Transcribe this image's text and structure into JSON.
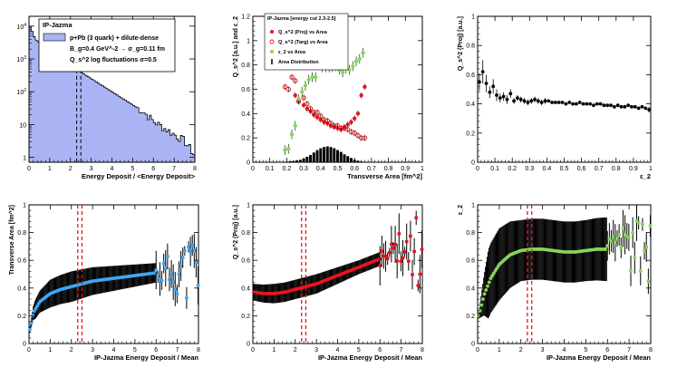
{
  "colors": {
    "fill": "#aab4f5",
    "red": "#e8141e",
    "green": "#88d45a",
    "blue": "#3fa6f2",
    "black": "#000000",
    "dashred": "#e8141e"
  },
  "chart_data": [
    {
      "id": "p1",
      "type": "histogram",
      "title": "IP-Jazma",
      "legend": [
        "p+Pb (3 quark) + dilute-dense",
        "B_g=0.4 GeV^-2 → σ_g=0.11 fm",
        "Q_s^2 log fluctuations σ=0.5"
      ],
      "xlabel": "Energy Deposit / <Energy Deposit>",
      "ylabel": "",
      "xlim": [
        0,
        8
      ],
      "ylim_log10": [
        -0.15,
        4.3
      ],
      "xticks": [
        "0",
        "1",
        "2",
        "3",
        "4",
        "5",
        "6",
        "7",
        "8"
      ],
      "yticks": [
        "1",
        "10",
        "10^2",
        "10^3",
        "10^4"
      ],
      "vlines": [
        2.3,
        2.5
      ],
      "bin_width": 0.1,
      "curve": {
        "x": [
          0.05,
          0.3,
          0.6,
          1.0,
          1.5,
          2.0,
          2.5,
          3.0,
          3.5,
          4.0,
          4.5,
          5.0,
          5.5,
          6.0,
          6.5,
          7.0,
          7.5,
          7.95
        ],
        "log10y": [
          4.0,
          3.6,
          3.45,
          3.25,
          3.0,
          2.8,
          2.6,
          2.4,
          2.2,
          2.0,
          1.8,
          1.6,
          1.4,
          1.1,
          0.9,
          0.7,
          0.5,
          0.1
        ]
      }
    },
    {
      "id": "p2",
      "type": "scatter",
      "legend_title": "IP-Jazma [energy cut 2.3-2.5]",
      "legend": [
        "Q_s^2 (Proj) vs Area",
        "Q_s^2 (Targ) vs Area",
        "ε_2 vs Area",
        "Area Distribution"
      ],
      "xlabel": "Transverse Area [fm^2]",
      "ylabel": "Q_s^2 [a.u.] and ε_2",
      "xlim": [
        0,
        1
      ],
      "ylim": [
        0,
        1.2
      ],
      "xticks": [
        "0",
        "0.1",
        "0.2",
        "0.3",
        "0.4",
        "0.5",
        "0.6",
        "0.7",
        "0.8",
        "0.9",
        "1"
      ],
      "yticks": [
        "0",
        "0.2",
        "0.4",
        "0.6",
        "0.8",
        "1",
        "1.2"
      ],
      "proj": {
        "x": [
          0.25,
          0.27,
          0.3,
          0.32,
          0.34,
          0.36,
          0.38,
          0.4,
          0.42,
          0.44,
          0.46,
          0.48,
          0.5,
          0.52,
          0.54,
          0.56,
          0.58,
          0.6,
          0.62,
          0.64,
          0.66
        ],
        "y": [
          0.55,
          0.51,
          0.47,
          0.44,
          0.42,
          0.39,
          0.37,
          0.35,
          0.33,
          0.32,
          0.3,
          0.29,
          0.28,
          0.27,
          0.29,
          0.31,
          0.33,
          0.36,
          0.4,
          0.55,
          0.62
        ]
      },
      "targ": {
        "x": [
          0.19,
          0.21,
          0.23,
          0.25,
          0.27,
          0.3,
          0.32,
          0.34,
          0.36,
          0.38,
          0.4,
          0.42,
          0.44,
          0.46,
          0.48,
          0.5,
          0.52,
          0.54,
          0.56,
          0.58,
          0.6,
          0.62,
          0.64,
          0.66
        ],
        "y": [
          0.62,
          0.6,
          0.7,
          0.67,
          0.5,
          0.53,
          0.48,
          0.44,
          0.41,
          0.41,
          0.38,
          0.35,
          0.34,
          0.32,
          0.3,
          0.3,
          0.28,
          0.28,
          0.27,
          0.25,
          0.24,
          0.22,
          0.2,
          0.2
        ]
      },
      "eps": {
        "x": [
          0.19,
          0.21,
          0.23,
          0.25,
          0.27,
          0.29,
          0.31,
          0.33,
          0.35,
          0.37,
          0.39,
          0.41,
          0.43,
          0.45,
          0.47,
          0.49,
          0.51,
          0.53,
          0.55,
          0.57,
          0.59,
          0.61,
          0.63,
          0.65
        ],
        "y": [
          0.1,
          0.11,
          0.23,
          0.3,
          0.52,
          0.58,
          0.63,
          0.68,
          0.7,
          0.7,
          0.8,
          0.78,
          0.78,
          0.78,
          0.78,
          0.79,
          0.76,
          0.74,
          0.77,
          0.76,
          0.79,
          0.83,
          0.85,
          0.9
        ]
      },
      "area": {
        "x": [
          0.2,
          0.22,
          0.24,
          0.26,
          0.28,
          0.3,
          0.32,
          0.34,
          0.36,
          0.38,
          0.4,
          0.42,
          0.44,
          0.46,
          0.48,
          0.5,
          0.52,
          0.54,
          0.56,
          0.58,
          0.6,
          0.62,
          0.64,
          0.66
        ],
        "y": [
          0.005,
          0.008,
          0.01,
          0.015,
          0.02,
          0.03,
          0.045,
          0.06,
          0.08,
          0.1,
          0.115,
          0.125,
          0.13,
          0.125,
          0.115,
          0.1,
          0.085,
          0.065,
          0.05,
          0.035,
          0.02,
          0.012,
          0.006,
          0.003
        ]
      }
    },
    {
      "id": "p3",
      "type": "scatter",
      "xlabel": "ε_2",
      "ylabel": "Q_s^2 (Proj) [a.u.]",
      "xlim": [
        0,
        1
      ],
      "ylim": [
        0,
        1
      ],
      "xticks": [
        "0",
        "0.1",
        "0.2",
        "0.3",
        "0.4",
        "0.5",
        "0.6",
        "0.7",
        "0.8",
        "0.9",
        "1"
      ],
      "yticks": [
        "0",
        "0.2",
        "0.4",
        "0.6",
        "0.8",
        "1"
      ],
      "x": [
        0.01,
        0.03,
        0.05,
        0.07,
        0.09,
        0.11,
        0.13,
        0.15,
        0.17,
        0.19,
        0.21,
        0.23,
        0.25,
        0.27,
        0.29,
        0.31,
        0.33,
        0.35,
        0.37,
        0.39,
        0.41,
        0.43,
        0.45,
        0.47,
        0.49,
        0.51,
        0.53,
        0.55,
        0.57,
        0.59,
        0.61,
        0.63,
        0.65,
        0.67,
        0.69,
        0.71,
        0.73,
        0.75,
        0.77,
        0.79,
        0.81,
        0.83,
        0.85,
        0.87,
        0.89,
        0.91,
        0.93,
        0.95,
        0.97,
        0.99
      ],
      "y": [
        0.55,
        0.62,
        0.54,
        0.48,
        0.52,
        0.46,
        0.44,
        0.45,
        0.43,
        0.47,
        0.42,
        0.44,
        0.43,
        0.42,
        0.41,
        0.42,
        0.43,
        0.42,
        0.41,
        0.42,
        0.42,
        0.41,
        0.41,
        0.41,
        0.41,
        0.4,
        0.41,
        0.4,
        0.4,
        0.41,
        0.4,
        0.4,
        0.4,
        0.39,
        0.4,
        0.4,
        0.39,
        0.39,
        0.39,
        0.38,
        0.39,
        0.38,
        0.38,
        0.39,
        0.38,
        0.38,
        0.37,
        0.38,
        0.37,
        0.36
      ],
      "err": [
        0.06,
        0.08,
        0.06,
        0.04,
        0.05,
        0.04,
        0.03,
        0.03,
        0.03,
        0.03,
        0.02,
        0.02,
        0.02,
        0.02,
        0.02,
        0.02,
        0.02,
        0.02,
        0.02,
        0.02,
        0.01,
        0.01,
        0.01,
        0.01,
        0.01,
        0.01,
        0.01,
        0.01,
        0.01,
        0.01,
        0.01,
        0.01,
        0.01,
        0.01,
        0.01,
        0.01,
        0.01,
        0.01,
        0.01,
        0.01,
        0.01,
        0.01,
        0.01,
        0.01,
        0.01,
        0.01,
        0.01,
        0.01,
        0.01,
        0.02
      ]
    },
    {
      "id": "p4",
      "type": "profile",
      "xlabel": "IP-Jazma Energy Deposit / Mean",
      "ylabel": "Transverse Area [fm^2]",
      "xlim": [
        0,
        8
      ],
      "ylim": [
        0,
        1
      ],
      "xticks": [
        "0",
        "1",
        "2",
        "3",
        "4",
        "5",
        "6",
        "7",
        "8"
      ],
      "yticks": [
        "0",
        "0.2",
        "0.4",
        "0.6",
        "0.8",
        "1"
      ],
      "vlines": [
        2.3,
        2.5
      ],
      "curve_x": [
        0.05,
        0.2,
        0.5,
        1.0,
        1.5,
        2.0,
        2.5,
        3.0,
        4.0,
        5.0,
        6.0,
        7.0,
        7.95
      ],
      "curve_y": [
        0.1,
        0.22,
        0.3,
        0.36,
        0.39,
        0.41,
        0.43,
        0.45,
        0.47,
        0.49,
        0.51,
        0.52,
        0.53
      ],
      "spread_x": [
        0.05,
        0.3,
        1.0,
        2.0,
        3.0,
        4.0,
        5.0,
        6.0
      ],
      "spread": [
        0.02,
        0.07,
        0.1,
        0.11,
        0.1,
        0.09,
        0.08,
        0.07
      ],
      "end_x": 6.0
    },
    {
      "id": "p5",
      "type": "profile",
      "xlabel": "IP-Jazma Energy Deposit / Mean",
      "ylabel": "Q_s^2 (Proj) [a.u.]",
      "xlim": [
        0,
        8
      ],
      "ylim": [
        0,
        1
      ],
      "xticks": [
        "0",
        "1",
        "2",
        "3",
        "4",
        "5",
        "6",
        "7",
        "8"
      ],
      "yticks": [
        "0",
        "0.2",
        "0.4",
        "0.6",
        "0.8",
        "1"
      ],
      "vlines": [
        2.3,
        2.5
      ],
      "curve_x": [
        0.05,
        0.5,
        1.0,
        1.5,
        2.0,
        2.5,
        3.0,
        3.5,
        4.0,
        4.5,
        5.0,
        5.5,
        6.0,
        6.5,
        7.0,
        7.5,
        7.95
      ],
      "curve_y": [
        0.37,
        0.36,
        0.36,
        0.37,
        0.39,
        0.41,
        0.43,
        0.46,
        0.49,
        0.52,
        0.55,
        0.58,
        0.61,
        0.63,
        0.65,
        0.67,
        0.68
      ],
      "spread_x": [
        0.05,
        1.0,
        2.0,
        3.0,
        4.0,
        5.0,
        6.0
      ],
      "spread": [
        0.06,
        0.07,
        0.07,
        0.07,
        0.06,
        0.05,
        0.05
      ],
      "end_x": 6.0
    },
    {
      "id": "p6",
      "type": "profile",
      "xlabel": "IP-Jazma Energy Deposit / Mean",
      "ylabel": "ε_2",
      "xlim": [
        0,
        8
      ],
      "ylim": [
        0,
        1
      ],
      "xticks": [
        "0",
        "1",
        "2",
        "3",
        "4",
        "5",
        "6",
        "7",
        "8"
      ],
      "yticks": [
        "0",
        "0.2",
        "0.4",
        "0.6",
        "0.8",
        "1"
      ],
      "vlines": [
        2.3,
        2.5
      ],
      "curve_x": [
        0.05,
        0.3,
        0.6,
        1.0,
        1.5,
        2.0,
        2.5,
        3.0,
        3.5,
        4.0,
        4.5,
        5.0,
        5.5,
        6.0,
        6.5,
        7.0,
        7.5,
        7.95
      ],
      "curve_y": [
        0.2,
        0.35,
        0.47,
        0.57,
        0.64,
        0.67,
        0.68,
        0.68,
        0.67,
        0.66,
        0.66,
        0.67,
        0.68,
        0.68,
        0.69,
        0.7,
        0.71,
        0.72
      ],
      "spread_x": [
        0.05,
        0.5,
        1.0,
        2.0,
        3.0,
        4.0,
        5.0,
        6.0
      ],
      "spread": [
        0.02,
        0.25,
        0.26,
        0.22,
        0.22,
        0.22,
        0.22,
        0.23
      ],
      "end_x": 6.0
    }
  ]
}
